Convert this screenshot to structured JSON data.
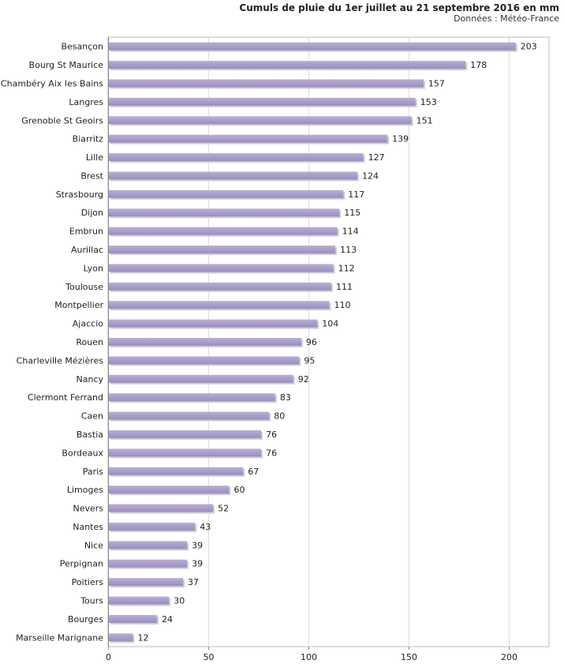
{
  "chart_data": {
    "type": "bar",
    "orientation": "horizontal",
    "title": "Cumuls de pluie du 1er juillet au 21 septembre 2016 en mm",
    "subtitle": "Données : Météo-France",
    "categories": [
      "Besançon",
      "Bourg St Maurice",
      "Chambéry Aix les Bains",
      "Langres",
      "Grenoble St Geoirs",
      "Biarritz",
      "Lille",
      "Brest",
      "Strasbourg",
      "Dijon",
      "Embrun",
      "Aurillac",
      "Lyon",
      "Toulouse",
      "Montpellier",
      "Ajaccio",
      "Rouen",
      "Charleville Mézières",
      "Nancy",
      "Clermont Ferrand",
      "Caen",
      "Bastia",
      "Bordeaux",
      "Paris",
      "Limoges",
      "Nevers",
      "Nantes",
      "Nice",
      "Perpignan",
      "Poitiers",
      "Tours",
      "Bourges",
      "Marseille Marignane"
    ],
    "values": [
      203,
      178,
      157,
      153,
      151,
      139,
      127,
      124,
      117,
      115,
      114,
      113,
      112,
      111,
      110,
      104,
      96,
      95,
      92,
      83,
      80,
      76,
      76,
      67,
      60,
      52,
      43,
      39,
      39,
      37,
      30,
      24,
      12
    ],
    "xlim": [
      0,
      220
    ],
    "xticks": [
      0,
      50,
      100,
      150,
      200
    ],
    "xlabel": "",
    "ylabel": "",
    "bar_color": "#a89cc8",
    "grid_color": "#dddddd"
  }
}
